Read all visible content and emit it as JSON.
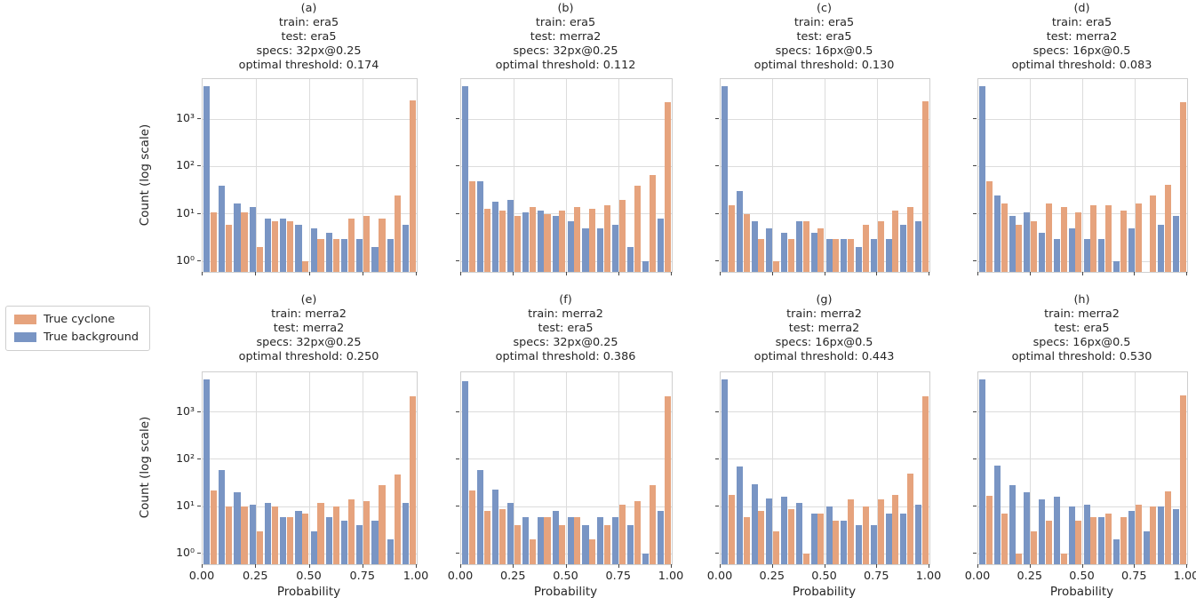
{
  "figure": {
    "background": "#ffffff"
  },
  "legend": {
    "items": [
      {
        "label": "True cyclone",
        "color": "#e6a37d"
      },
      {
        "label": "True background",
        "color": "#7995c4"
      }
    ]
  },
  "axes": {
    "ylabel": "Count (log scale)",
    "xlabel": "Probability",
    "x_ticks": [
      "0.00",
      "0.25",
      "0.50",
      "0.75",
      "1.00"
    ],
    "y_ticks": [
      "10⁰",
      "10¹",
      "10²",
      "10³"
    ]
  },
  "chart_data": [
    {
      "id": "a",
      "type": "bar",
      "title_lines": [
        "(a)",
        "train: era5",
        "test: era5",
        "specs: 32px@0.25",
        "optimal threshold: 0.174"
      ],
      "x_range": [
        0,
        1
      ],
      "bins": 14,
      "yscale": "log",
      "ylim": [
        0.6,
        7000
      ],
      "grid": true,
      "legend_position": "outside-left",
      "series": [
        {
          "name": "True background",
          "color": "#7995c4",
          "values": [
            5000,
            40,
            17,
            14,
            8,
            8,
            6,
            5,
            4,
            3,
            3,
            2,
            3,
            6
          ]
        },
        {
          "name": "True cyclone",
          "color": "#e6a37d",
          "values": [
            11,
            6,
            11,
            2,
            7,
            7,
            1,
            3,
            3,
            8,
            9,
            8,
            25,
            2500
          ]
        }
      ]
    },
    {
      "id": "b",
      "type": "bar",
      "title_lines": [
        "(b)",
        "train: era5",
        "test: merra2",
        "specs: 32px@0.25",
        "optimal threshold: 0.112"
      ],
      "x_range": [
        0,
        1
      ],
      "bins": 14,
      "yscale": "log",
      "ylim": [
        0.6,
        7000
      ],
      "grid": true,
      "series": [
        {
          "name": "True background",
          "color": "#7995c4",
          "values": [
            5000,
            50,
            18,
            20,
            11,
            12,
            9,
            7,
            5,
            5,
            6,
            2,
            1,
            8
          ]
        },
        {
          "name": "True cyclone",
          "color": "#e6a37d",
          "values": [
            50,
            13,
            12,
            9,
            14,
            10,
            12,
            14,
            13,
            15,
            20,
            40,
            65,
            2300
          ]
        }
      ]
    },
    {
      "id": "c",
      "type": "bar",
      "title_lines": [
        "(c)",
        "train: era5",
        "test: era5",
        "specs: 16px@0.5",
        "optimal threshold: 0.130"
      ],
      "x_range": [
        0,
        1
      ],
      "bins": 14,
      "yscale": "log",
      "ylim": [
        0.6,
        7000
      ],
      "grid": true,
      "series": [
        {
          "name": "True background",
          "color": "#7995c4",
          "values": [
            5000,
            30,
            7,
            5,
            4,
            7,
            4,
            3,
            3,
            2,
            3,
            3,
            6,
            7
          ]
        },
        {
          "name": "True cyclone",
          "color": "#e6a37d",
          "values": [
            15,
            10,
            3,
            1,
            3,
            7,
            5,
            3,
            3,
            6,
            7,
            12,
            14,
            2400
          ]
        }
      ]
    },
    {
      "id": "d",
      "type": "bar",
      "title_lines": [
        "(d)",
        "train: era5",
        "test: merra2",
        "specs: 16px@0.5",
        "optimal threshold: 0.083"
      ],
      "x_range": [
        0,
        1
      ],
      "bins": 14,
      "yscale": "log",
      "ylim": [
        0.6,
        7000
      ],
      "grid": true,
      "series": [
        {
          "name": "True background",
          "color": "#7995c4",
          "values": [
            5000,
            25,
            9,
            11,
            4,
            3,
            5,
            3,
            3,
            1,
            5,
            0,
            6,
            9
          ]
        },
        {
          "name": "True cyclone",
          "color": "#e6a37d",
          "values": [
            50,
            17,
            6,
            7,
            17,
            14,
            11,
            15,
            15,
            12,
            17,
            25,
            42,
            2300
          ]
        }
      ]
    },
    {
      "id": "e",
      "type": "bar",
      "title_lines": [
        "(e)",
        "train: merra2",
        "test: merra2",
        "specs: 32px@0.25",
        "optimal threshold: 0.250"
      ],
      "x_range": [
        0,
        1
      ],
      "bins": 14,
      "yscale": "log",
      "ylim": [
        0.6,
        7000
      ],
      "grid": true,
      "series": [
        {
          "name": "True background",
          "color": "#7995c4",
          "values": [
            5000,
            60,
            20,
            11,
            12,
            6,
            8,
            3,
            6,
            5,
            4,
            5,
            2,
            12
          ]
        },
        {
          "name": "True cyclone",
          "color": "#e6a37d",
          "values": [
            22,
            10,
            10,
            3,
            10,
            6,
            7,
            12,
            10,
            14,
            13,
            28,
            47,
            2200
          ]
        }
      ]
    },
    {
      "id": "f",
      "type": "bar",
      "title_lines": [
        "(f)",
        "train: merra2",
        "test: era5",
        "specs: 32px@0.25",
        "optimal threshold: 0.386"
      ],
      "x_range": [
        0,
        1
      ],
      "bins": 14,
      "yscale": "log",
      "ylim": [
        0.6,
        7000
      ],
      "grid": true,
      "series": [
        {
          "name": "True background",
          "color": "#7995c4",
          "values": [
            4500,
            60,
            23,
            12,
            6,
            6,
            8,
            6,
            4,
            6,
            6,
            4,
            1,
            8
          ]
        },
        {
          "name": "True cyclone",
          "color": "#e6a37d",
          "values": [
            22,
            8,
            9,
            4,
            2,
            6,
            4,
            6,
            2,
            4,
            11,
            13,
            28,
            2200
          ]
        }
      ]
    },
    {
      "id": "g",
      "type": "bar",
      "title_lines": [
        "(g)",
        "train: merra2",
        "test: merra2",
        "specs: 16px@0.5",
        "optimal threshold: 0.443"
      ],
      "x_range": [
        0,
        1
      ],
      "bins": 14,
      "yscale": "log",
      "ylim": [
        0.6,
        7000
      ],
      "grid": true,
      "series": [
        {
          "name": "True background",
          "color": "#7995c4",
          "values": [
            5000,
            70,
            30,
            15,
            16,
            12,
            7,
            10,
            5,
            4,
            4,
            7,
            7,
            11
          ]
        },
        {
          "name": "True cyclone",
          "color": "#e6a37d",
          "values": [
            18,
            6,
            8,
            3,
            9,
            1,
            7,
            5,
            14,
            10,
            14,
            18,
            50,
            2200
          ]
        }
      ]
    },
    {
      "id": "h",
      "type": "bar",
      "title_lines": [
        "(h)",
        "train: merra2",
        "test: era5",
        "specs: 16px@0.5",
        "optimal threshold: 0.530"
      ],
      "x_range": [
        0,
        1
      ],
      "bins": 14,
      "yscale": "log",
      "ylim": [
        0.6,
        7000
      ],
      "grid": true,
      "series": [
        {
          "name": "True background",
          "color": "#7995c4",
          "values": [
            5000,
            75,
            28,
            20,
            14,
            16,
            10,
            11,
            6,
            2,
            8,
            3,
            10,
            9
          ]
        },
        {
          "name": "True cyclone",
          "color": "#e6a37d",
          "values": [
            17,
            7,
            1,
            3,
            5,
            1,
            5,
            6,
            7,
            6,
            11,
            10,
            21,
            2300
          ]
        }
      ]
    }
  ]
}
